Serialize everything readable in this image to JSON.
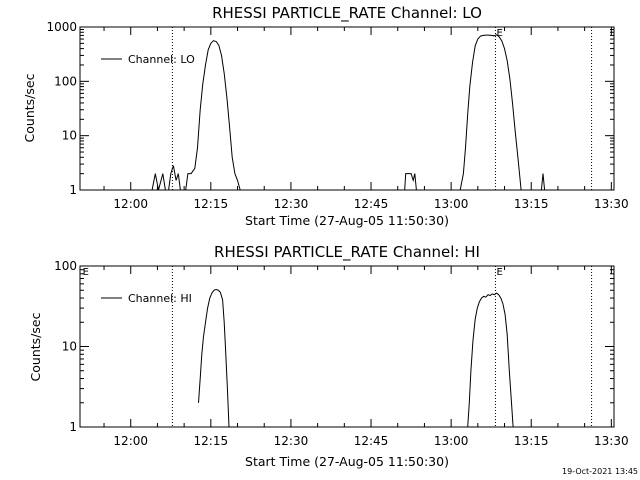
{
  "footer_timestamp": "19-Oct-2021 13:45",
  "chart_data": [
    {
      "type": "line",
      "title": "RHESSI PARTICLE_RATE Channel: LO",
      "xlabel": "Start Time (27-Aug-05 11:50:30)",
      "ylabel": "Counts/sec",
      "x_units": "minutes since 11:50:30",
      "xlim": [
        0,
        100
      ],
      "y_scale": "log",
      "ylim": [
        1,
        1000
      ],
      "x_ticks": [
        {
          "value": 9.5,
          "label": "12:00"
        },
        {
          "value": 24.5,
          "label": "12:15"
        },
        {
          "value": 39.5,
          "label": "12:30"
        },
        {
          "value": 54.5,
          "label": "12:45"
        },
        {
          "value": 69.5,
          "label": "13:00"
        },
        {
          "value": 84.5,
          "label": "13:15"
        },
        {
          "value": 99.5,
          "label": "13:30"
        }
      ],
      "y_ticks": [
        {
          "value": 1,
          "label": "1"
        },
        {
          "value": 10,
          "label": "10"
        },
        {
          "value": 100,
          "label": "100"
        },
        {
          "value": 1000,
          "label": "1000"
        }
      ],
      "legend": {
        "label": "Channel: LO",
        "position": "top-left"
      },
      "vertical_markers": [
        {
          "x": 17.3,
          "label": ""
        },
        {
          "x": 77.8,
          "label": "E"
        },
        {
          "x": 95.8,
          "label": ""
        }
      ],
      "series": [
        {
          "name": "Channel: LO",
          "segments": [
            [
              [
                13.5,
                1
              ],
              [
                14.1,
                2
              ],
              [
                14.7,
                1
              ],
              [
                15.5,
                2
              ],
              [
                16.0,
                1
              ]
            ],
            [
              [
                16.6,
                1
              ],
              [
                17.0,
                2
              ],
              [
                17.5,
                2.8
              ],
              [
                18.0,
                1.5
              ],
              [
                18.4,
                2
              ],
              [
                18.8,
                1
              ]
            ],
            [
              [
                19.8,
                1
              ],
              [
                20.2,
                2
              ],
              [
                20.8,
                2
              ],
              [
                21.5,
                2.5
              ],
              [
                22.0,
                6
              ],
              [
                22.5,
                30
              ],
              [
                23.0,
                90
              ],
              [
                23.5,
                200
              ],
              [
                24.0,
                380
              ],
              [
                24.5,
                500
              ],
              [
                25.0,
                560
              ],
              [
                25.5,
                540
              ],
              [
                26.0,
                460
              ],
              [
                26.5,
                300
              ],
              [
                27.0,
                140
              ],
              [
                27.5,
                50
              ],
              [
                28.0,
                15
              ],
              [
                28.5,
                4
              ],
              [
                29.0,
                2
              ],
              [
                29.5,
                1.5
              ],
              [
                30.0,
                1
              ]
            ],
            [
              [
                60.8,
                1
              ],
              [
                61.0,
                2
              ],
              [
                62.0,
                2
              ],
              [
                62.4,
                1.5
              ],
              [
                62.7,
                2
              ],
              [
                63.0,
                1
              ]
            ],
            [
              [
                71.2,
                1
              ],
              [
                71.8,
                2
              ],
              [
                72.2,
                6
              ],
              [
                72.6,
                25
              ],
              [
                73.0,
                80
              ],
              [
                73.5,
                220
              ],
              [
                74.0,
                450
              ],
              [
                74.5,
                600
              ],
              [
                75.0,
                680
              ],
              [
                75.5,
                700
              ],
              [
                76.0,
                710
              ],
              [
                76.5,
                710
              ],
              [
                77.0,
                700
              ],
              [
                77.5,
                690
              ],
              [
                78.0,
                720
              ],
              [
                78.5,
                660
              ],
              [
                79.0,
                550
              ],
              [
                79.5,
                400
              ],
              [
                80.0,
                240
              ],
              [
                80.5,
                110
              ],
              [
                81.0,
                40
              ],
              [
                81.5,
                12
              ],
              [
                82.0,
                4
              ],
              [
                82.3,
                2
              ],
              [
                82.6,
                1
              ]
            ],
            [
              [
                86.4,
                1
              ],
              [
                86.7,
                2
              ],
              [
                87.0,
                1
              ]
            ]
          ]
        }
      ]
    },
    {
      "type": "line",
      "title": "RHESSI PARTICLE_RATE Channel: HI",
      "xlabel": "Start Time (27-Aug-05 11:50:30)",
      "ylabel": "Counts/sec",
      "x_units": "minutes since 11:50:30",
      "xlim": [
        0,
        100
      ],
      "y_scale": "log",
      "ylim": [
        1,
        100
      ],
      "x_ticks": [
        {
          "value": 9.5,
          "label": "12:00"
        },
        {
          "value": 24.5,
          "label": "12:15"
        },
        {
          "value": 39.5,
          "label": "12:30"
        },
        {
          "value": 54.5,
          "label": "12:45"
        },
        {
          "value": 69.5,
          "label": "13:00"
        },
        {
          "value": 84.5,
          "label": "13:15"
        },
        {
          "value": 99.5,
          "label": "13:30"
        }
      ],
      "y_ticks": [
        {
          "value": 1,
          "label": "1"
        },
        {
          "value": 10,
          "label": "10"
        },
        {
          "value": 100,
          "label": "100"
        }
      ],
      "legend": {
        "label": "Channel: HI",
        "position": "top-left"
      },
      "vertical_markers": [
        {
          "x": 17.3,
          "label": ""
        },
        {
          "x": 77.8,
          "label": "E"
        },
        {
          "x": 95.8,
          "label": ""
        }
      ],
      "edge_marker": {
        "x": 0.3,
        "label": "E"
      },
      "series": [
        {
          "name": "Channel: HI",
          "segments": [
            [
              [
                22.2,
                2
              ],
              [
                22.5,
                4
              ],
              [
                22.8,
                8
              ],
              [
                23.1,
                13
              ],
              [
                23.5,
                20
              ],
              [
                23.9,
                30
              ],
              [
                24.3,
                40
              ],
              [
                24.7,
                46
              ],
              [
                25.1,
                50
              ],
              [
                25.5,
                51
              ],
              [
                25.9,
                50
              ],
              [
                26.3,
                47
              ],
              [
                26.7,
                38
              ],
              [
                27.0,
                20
              ],
              [
                27.3,
                8
              ],
              [
                27.6,
                3
              ],
              [
                27.9,
                1
              ]
            ],
            [
              [
                72.6,
                1
              ],
              [
                72.9,
                2
              ],
              [
                73.2,
                5
              ],
              [
                73.6,
                12
              ],
              [
                74.0,
                22
              ],
              [
                74.4,
                30
              ],
              [
                74.8,
                36
              ],
              [
                75.2,
                40
              ],
              [
                75.6,
                42
              ],
              [
                76.0,
                41
              ],
              [
                76.4,
                44
              ],
              [
                76.8,
                43
              ],
              [
                77.2,
                45
              ],
              [
                77.6,
                44
              ],
              [
                78.0,
                46
              ],
              [
                78.4,
                44
              ],
              [
                78.8,
                40
              ],
              [
                79.2,
                34
              ],
              [
                79.6,
                25
              ],
              [
                80.0,
                14
              ],
              [
                80.4,
                5
              ],
              [
                80.8,
                2
              ],
              [
                81.1,
                1
              ]
            ]
          ]
        }
      ]
    }
  ]
}
